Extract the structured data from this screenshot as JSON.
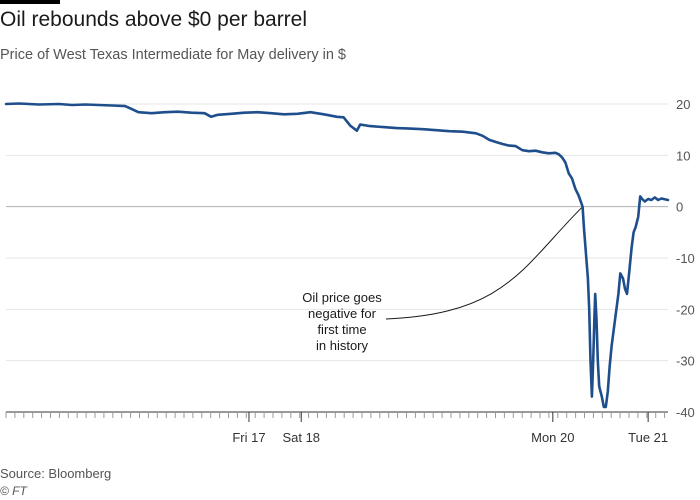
{
  "header": {
    "title": "Oil rebounds above $0 per barrel",
    "subtitle": "Price of West Texas Intermediate for May delivery in $"
  },
  "footer": {
    "source": "Source: Bloomberg",
    "credit": "© FT"
  },
  "colors": {
    "line": "#1f4e8c",
    "grid": "#e6e6e6",
    "zero_line": "#b0b0b0",
    "annotation": "#1a1a1a"
  },
  "chart_data": {
    "type": "line",
    "title": "Oil rebounds above $0 per barrel",
    "subtitle": "Price of West Texas Intermediate for May delivery in $",
    "xlabel": "",
    "ylabel": "",
    "ylim": [
      -40,
      20
    ],
    "y_ticks": [
      20,
      10,
      0,
      -10,
      -20,
      -30,
      -40
    ],
    "y_axis_side": "right",
    "grid": true,
    "x_ticks": [
      "Fri 17",
      "Sat 18",
      "Mon 20",
      "Tue 21"
    ],
    "x_tick_positions": [
      0.367,
      0.446,
      0.826,
      0.97
    ],
    "x_range": [
      0,
      1
    ],
    "annotation": {
      "text": [
        "Oil price goes",
        "negative for",
        "first time",
        "in history"
      ],
      "point": {
        "x": 0.871,
        "y": 0
      }
    },
    "series": [
      {
        "values": [
          [
            0.0,
            20.0
          ],
          [
            0.02,
            20.1
          ],
          [
            0.05,
            19.9
          ],
          [
            0.08,
            20.0
          ],
          [
            0.1,
            19.8
          ],
          [
            0.12,
            19.9
          ],
          [
            0.14,
            19.8
          ],
          [
            0.16,
            19.7
          ],
          [
            0.18,
            19.6
          ],
          [
            0.19,
            19.0
          ],
          [
            0.2,
            18.4
          ],
          [
            0.22,
            18.2
          ],
          [
            0.24,
            18.4
          ],
          [
            0.26,
            18.5
          ],
          [
            0.28,
            18.3
          ],
          [
            0.3,
            18.2
          ],
          [
            0.31,
            17.5
          ],
          [
            0.32,
            17.9
          ],
          [
            0.34,
            18.1
          ],
          [
            0.36,
            18.3
          ],
          [
            0.38,
            18.4
          ],
          [
            0.4,
            18.2
          ],
          [
            0.42,
            18.0
          ],
          [
            0.44,
            18.1
          ],
          [
            0.46,
            18.4
          ],
          [
            0.48,
            18.0
          ],
          [
            0.5,
            17.5
          ],
          [
            0.51,
            17.4
          ],
          [
            0.52,
            15.8
          ],
          [
            0.53,
            14.8
          ],
          [
            0.535,
            16.0
          ],
          [
            0.55,
            15.7
          ],
          [
            0.57,
            15.5
          ],
          [
            0.59,
            15.3
          ],
          [
            0.61,
            15.2
          ],
          [
            0.63,
            15.1
          ],
          [
            0.65,
            14.9
          ],
          [
            0.67,
            14.7
          ],
          [
            0.69,
            14.6
          ],
          [
            0.71,
            14.3
          ],
          [
            0.72,
            13.8
          ],
          [
            0.73,
            13.0
          ],
          [
            0.74,
            12.6
          ],
          [
            0.75,
            12.2
          ],
          [
            0.76,
            11.9
          ],
          [
            0.77,
            11.8
          ],
          [
            0.78,
            11.0
          ],
          [
            0.79,
            10.8
          ],
          [
            0.8,
            10.9
          ],
          [
            0.81,
            10.6
          ],
          [
            0.82,
            10.4
          ],
          [
            0.83,
            10.5
          ],
          [
            0.835,
            10.2
          ],
          [
            0.84,
            9.6
          ],
          [
            0.845,
            8.6
          ],
          [
            0.85,
            6.5
          ],
          [
            0.855,
            5.5
          ],
          [
            0.86,
            3.5
          ],
          [
            0.865,
            2.2
          ],
          [
            0.871,
            0.0
          ],
          [
            0.873,
            -4.0
          ],
          [
            0.876,
            -9.0
          ],
          [
            0.879,
            -14.0
          ],
          [
            0.881,
            -20.0
          ],
          [
            0.883,
            -30.0
          ],
          [
            0.885,
            -37.0
          ],
          [
            0.887,
            -30.0
          ],
          [
            0.889,
            -21.0
          ],
          [
            0.89,
            -17.0
          ],
          [
            0.892,
            -22.0
          ],
          [
            0.894,
            -30.0
          ],
          [
            0.896,
            -35.0
          ],
          [
            0.898,
            -36.0
          ],
          [
            0.9,
            -37.0
          ],
          [
            0.903,
            -39.0
          ],
          [
            0.906,
            -39.0
          ],
          [
            0.909,
            -36.0
          ],
          [
            0.912,
            -31.0
          ],
          [
            0.915,
            -27.0
          ],
          [
            0.918,
            -24.0
          ],
          [
            0.921,
            -21.0
          ],
          [
            0.925,
            -17.0
          ],
          [
            0.928,
            -13.0
          ],
          [
            0.932,
            -14.0
          ],
          [
            0.935,
            -16.0
          ],
          [
            0.938,
            -17.0
          ],
          [
            0.942,
            -12.0
          ],
          [
            0.945,
            -8.0
          ],
          [
            0.948,
            -5.0
          ],
          [
            0.951,
            -4.0
          ],
          [
            0.955,
            -2.0
          ],
          [
            0.958,
            2.0
          ],
          [
            0.961,
            1.5
          ],
          [
            0.965,
            1.0
          ],
          [
            0.97,
            1.5
          ],
          [
            0.975,
            1.3
          ],
          [
            0.98,
            1.8
          ],
          [
            0.985,
            1.3
          ],
          [
            0.99,
            1.6
          ],
          [
            1.0,
            1.3
          ]
        ]
      }
    ]
  }
}
